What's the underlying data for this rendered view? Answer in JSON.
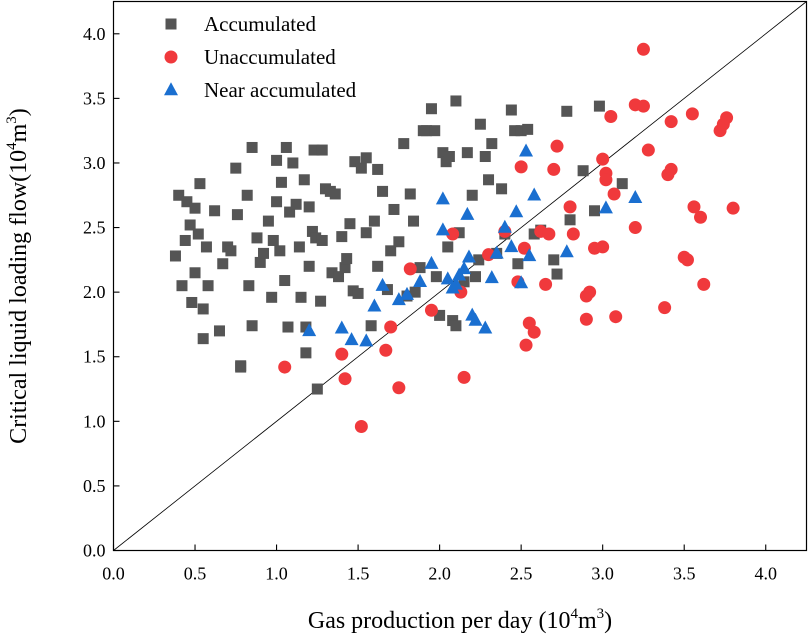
{
  "chart_data": {
    "type": "scatter",
    "xlabel": "Gas production per day (10",
    "xlabel_sup": "4",
    "xlabel_suffix": "m",
    "xlabel_sup2": "3",
    "xlabel_end": ")",
    "ylabel": "Critical liquid loading flow(10",
    "ylabel_sup": "4",
    "ylabel_suffix": "m",
    "ylabel_sup2": "3",
    "ylabel_end": ")",
    "xlim": [
      0,
      4.25
    ],
    "ylim": [
      0,
      4.25
    ],
    "xticks": [
      "0.0",
      "0.5",
      "1.0",
      "1.5",
      "2.0",
      "2.5",
      "3.0",
      "3.5",
      "4.0"
    ],
    "yticks": [
      "0.0",
      "0.5",
      "1.0",
      "1.5",
      "2.0",
      "2.5",
      "3.0",
      "3.5",
      "4.0"
    ],
    "reference_line": {
      "x": [
        0,
        4.25
      ],
      "y": [
        0,
        4.25
      ],
      "color": "#000000"
    },
    "legend_position": "top-left",
    "series": [
      {
        "name": "Accumulated",
        "marker": "square",
        "color": "#555555",
        "points": [
          [
            0.38,
            2.28
          ],
          [
            0.4,
            2.75
          ],
          [
            0.42,
            2.05
          ],
          [
            0.44,
            2.4
          ],
          [
            0.45,
            2.7
          ],
          [
            0.47,
            2.52
          ],
          [
            0.48,
            1.92
          ],
          [
            0.5,
            2.65
          ],
          [
            0.5,
            2.15
          ],
          [
            0.52,
            2.45
          ],
          [
            0.53,
            2.84
          ],
          [
            0.55,
            1.87
          ],
          [
            0.55,
            1.64
          ],
          [
            0.57,
            2.35
          ],
          [
            0.58,
            2.05
          ],
          [
            0.62,
            2.63
          ],
          [
            0.65,
            1.7
          ],
          [
            0.67,
            2.22
          ],
          [
            0.7,
            2.35
          ],
          [
            0.72,
            2.32
          ],
          [
            0.75,
            2.96
          ],
          [
            0.76,
            2.6
          ],
          [
            0.78,
            1.43
          ],
          [
            0.78,
            1.42
          ],
          [
            0.82,
            2.75
          ],
          [
            0.83,
            2.05
          ],
          [
            0.85,
            3.12
          ],
          [
            0.85,
            1.74
          ],
          [
            0.88,
            2.42
          ],
          [
            0.9,
            2.23
          ],
          [
            0.92,
            2.3
          ],
          [
            0.95,
            2.55
          ],
          [
            0.97,
            1.96
          ],
          [
            0.98,
            2.4
          ],
          [
            1.0,
            2.7
          ],
          [
            1.0,
            3.02
          ],
          [
            1.02,
            2.32
          ],
          [
            1.03,
            2.85
          ],
          [
            1.05,
            2.09
          ],
          [
            1.06,
            3.12
          ],
          [
            1.07,
            1.73
          ],
          [
            1.08,
            2.62
          ],
          [
            1.1,
            3.0
          ],
          [
            1.12,
            2.68
          ],
          [
            1.14,
            2.35
          ],
          [
            1.15,
            1.96
          ],
          [
            1.17,
            2.87
          ],
          [
            1.18,
            1.73
          ],
          [
            1.18,
            1.53
          ],
          [
            1.2,
            2.2
          ],
          [
            1.2,
            2.66
          ],
          [
            1.22,
            2.47
          ],
          [
            1.23,
            3.1
          ],
          [
            1.24,
            2.42
          ],
          [
            1.25,
            1.25
          ],
          [
            1.27,
            1.93
          ],
          [
            1.28,
            2.4
          ],
          [
            1.28,
            3.1
          ],
          [
            1.3,
            2.8
          ],
          [
            1.33,
            2.78
          ],
          [
            1.34,
            2.15
          ],
          [
            1.36,
            2.76
          ],
          [
            1.38,
            2.12
          ],
          [
            1.4,
            2.43
          ],
          [
            1.42,
            2.19
          ],
          [
            1.43,
            2.26
          ],
          [
            1.45,
            2.53
          ],
          [
            1.47,
            2.01
          ],
          [
            1.48,
            3.01
          ],
          [
            1.5,
            1.99
          ],
          [
            1.52,
            2.96
          ],
          [
            1.55,
            3.04
          ],
          [
            1.55,
            2.46
          ],
          [
            1.58,
            1.74
          ],
          [
            1.6,
            2.55
          ],
          [
            1.62,
            2.2
          ],
          [
            1.62,
            2.95
          ],
          [
            1.65,
            2.78
          ],
          [
            1.68,
            2.02
          ],
          [
            1.7,
            2.32
          ],
          [
            1.72,
            2.64
          ],
          [
            1.75,
            2.39
          ],
          [
            1.78,
            3.15
          ],
          [
            1.8,
            1.97
          ],
          [
            1.82,
            2.76
          ],
          [
            1.84,
            2.55
          ],
          [
            1.85,
            2.0
          ],
          [
            1.88,
            2.19
          ],
          [
            1.9,
            3.25
          ],
          [
            1.92,
            3.25
          ],
          [
            1.95,
            3.42
          ],
          [
            1.97,
            3.25
          ],
          [
            1.98,
            2.12
          ],
          [
            2.0,
            1.82
          ],
          [
            2.02,
            3.08
          ],
          [
            2.04,
            3.01
          ],
          [
            2.05,
            2.35
          ],
          [
            2.06,
            3.05
          ],
          [
            2.08,
            1.78
          ],
          [
            2.1,
            1.74
          ],
          [
            2.1,
            3.48
          ],
          [
            2.12,
            2.46
          ],
          [
            2.15,
            2.08
          ],
          [
            2.17,
            3.08
          ],
          [
            2.2,
            2.75
          ],
          [
            2.22,
            2.12
          ],
          [
            2.24,
            2.25
          ],
          [
            2.25,
            3.3
          ],
          [
            2.28,
            3.05
          ],
          [
            2.3,
            2.87
          ],
          [
            2.32,
            3.15
          ],
          [
            2.35,
            2.3
          ],
          [
            2.38,
            2.8
          ],
          [
            2.4,
            2.45
          ],
          [
            2.44,
            3.41
          ],
          [
            2.46,
            3.25
          ],
          [
            2.48,
            2.22
          ],
          [
            2.5,
            3.25
          ],
          [
            2.54,
            3.26
          ],
          [
            2.58,
            2.45
          ],
          [
            2.62,
            2.48
          ],
          [
            2.7,
            2.25
          ],
          [
            2.72,
            2.14
          ],
          [
            2.78,
            3.4
          ],
          [
            2.8,
            2.56
          ],
          [
            2.88,
            2.94
          ],
          [
            2.95,
            2.63
          ],
          [
            2.98,
            3.44
          ],
          [
            3.12,
            2.84
          ]
        ]
      },
      {
        "name": "Unaccumulated",
        "marker": "circle",
        "color": "#f0393c",
        "points": [
          [
            1.05,
            1.42
          ],
          [
            1.4,
            1.52
          ],
          [
            1.42,
            1.33
          ],
          [
            1.52,
            0.96
          ],
          [
            1.67,
            1.55
          ],
          [
            1.7,
            1.73
          ],
          [
            1.75,
            1.26
          ],
          [
            1.82,
            2.18
          ],
          [
            1.95,
            1.86
          ],
          [
            2.08,
            2.45
          ],
          [
            2.13,
            2.0
          ],
          [
            2.15,
            1.34
          ],
          [
            2.3,
            2.29
          ],
          [
            2.4,
            2.47
          ],
          [
            2.48,
            2.08
          ],
          [
            2.5,
            2.97
          ],
          [
            2.52,
            2.34
          ],
          [
            2.53,
            1.59
          ],
          [
            2.55,
            1.76
          ],
          [
            2.58,
            1.69
          ],
          [
            2.62,
            2.47
          ],
          [
            2.65,
            2.06
          ],
          [
            2.67,
            2.45
          ],
          [
            2.7,
            2.95
          ],
          [
            2.72,
            3.13
          ],
          [
            2.8,
            2.66
          ],
          [
            2.82,
            2.45
          ],
          [
            2.9,
            1.79
          ],
          [
            2.9,
            1.97
          ],
          [
            2.92,
            2.0
          ],
          [
            2.95,
            2.34
          ],
          [
            3.0,
            2.35
          ],
          [
            3.0,
            3.03
          ],
          [
            3.02,
            2.92
          ],
          [
            3.02,
            2.87
          ],
          [
            3.05,
            3.36
          ],
          [
            3.07,
            2.76
          ],
          [
            3.08,
            1.81
          ],
          [
            3.2,
            2.5
          ],
          [
            3.2,
            3.45
          ],
          [
            3.25,
            3.44
          ],
          [
            3.25,
            3.88
          ],
          [
            3.28,
            3.1
          ],
          [
            3.38,
            1.88
          ],
          [
            3.4,
            2.91
          ],
          [
            3.42,
            3.32
          ],
          [
            3.42,
            2.95
          ],
          [
            3.5,
            2.27
          ],
          [
            3.52,
            2.25
          ],
          [
            3.55,
            3.38
          ],
          [
            3.56,
            2.66
          ],
          [
            3.6,
            2.58
          ],
          [
            3.62,
            2.06
          ],
          [
            3.72,
            3.25
          ],
          [
            3.74,
            3.3
          ],
          [
            3.76,
            3.35
          ],
          [
            3.8,
            2.65
          ]
        ]
      },
      {
        "name": "Near accumulated",
        "marker": "triangle",
        "color": "#1a6fd0",
        "points": [
          [
            1.2,
            1.7
          ],
          [
            1.4,
            1.72
          ],
          [
            1.46,
            1.63
          ],
          [
            1.55,
            1.62
          ],
          [
            1.6,
            1.89
          ],
          [
            1.65,
            2.05
          ],
          [
            1.75,
            1.94
          ],
          [
            1.8,
            1.98
          ],
          [
            1.88,
            2.08
          ],
          [
            1.95,
            2.22
          ],
          [
            2.02,
            2.72
          ],
          [
            2.02,
            2.48
          ],
          [
            2.05,
            2.1
          ],
          [
            2.08,
            2.03
          ],
          [
            2.1,
            2.06
          ],
          [
            2.12,
            2.13
          ],
          [
            2.15,
            2.18
          ],
          [
            2.17,
            2.6
          ],
          [
            2.18,
            2.27
          ],
          [
            2.2,
            1.82
          ],
          [
            2.22,
            1.78
          ],
          [
            2.28,
            1.72
          ],
          [
            2.32,
            2.11
          ],
          [
            2.35,
            2.3
          ],
          [
            2.4,
            2.5
          ],
          [
            2.44,
            2.35
          ],
          [
            2.47,
            2.62
          ],
          [
            2.5,
            2.07
          ],
          [
            2.53,
            3.09
          ],
          [
            2.55,
            2.28
          ],
          [
            2.58,
            2.75
          ],
          [
            2.78,
            2.31
          ],
          [
            3.02,
            2.65
          ],
          [
            3.2,
            2.73
          ]
        ]
      }
    ]
  }
}
